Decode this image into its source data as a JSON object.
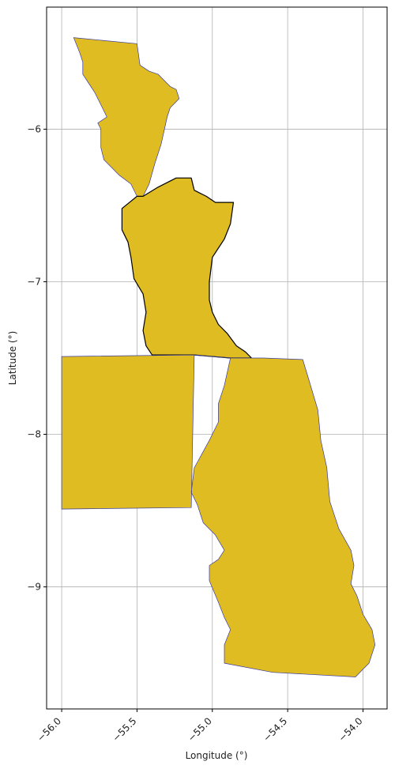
{
  "chart_data": {
    "type": "map",
    "title": "",
    "xlabel": "Longitude (°)",
    "ylabel": "Latitude (°)",
    "xlim": [
      -56.1,
      -53.84
    ],
    "ylim": [
      -9.8,
      -5.2
    ],
    "x_ticks": [
      {
        "value": -56.0,
        "label": "−56.0"
      },
      {
        "value": -55.5,
        "label": "−55.5"
      },
      {
        "value": -55.0,
        "label": "−55.0"
      },
      {
        "value": -54.5,
        "label": "−54.5"
      },
      {
        "value": -54.0,
        "label": "−54.0"
      }
    ],
    "y_ticks": [
      {
        "value": -6,
        "label": "−6"
      },
      {
        "value": -7,
        "label": "−7"
      },
      {
        "value": -8,
        "label": "−8"
      },
      {
        "value": -9,
        "label": "−9"
      }
    ],
    "grid": true,
    "regions": [
      {
        "fill": "#dfbd22",
        "stroke": "#3a3aa0",
        "coords": [
          [
            -55.92,
            -5.4
          ],
          [
            -55.5,
            -5.44
          ],
          [
            -55.48,
            -5.58
          ],
          [
            -55.42,
            -5.62
          ],
          [
            -55.36,
            -5.64
          ],
          [
            -55.32,
            -5.68
          ],
          [
            -55.28,
            -5.72
          ],
          [
            -55.24,
            -5.74
          ],
          [
            -55.22,
            -5.8
          ],
          [
            -55.28,
            -5.86
          ],
          [
            -55.3,
            -5.92
          ],
          [
            -55.34,
            -6.1
          ],
          [
            -55.38,
            -6.22
          ],
          [
            -55.42,
            -6.36
          ],
          [
            -55.46,
            -6.44
          ],
          [
            -55.5,
            -6.44
          ],
          [
            -55.54,
            -6.36
          ],
          [
            -55.62,
            -6.3
          ],
          [
            -55.72,
            -6.2
          ],
          [
            -55.74,
            -6.12
          ],
          [
            -55.74,
            -6.0
          ],
          [
            -55.76,
            -5.96
          ],
          [
            -55.7,
            -5.92
          ],
          [
            -55.74,
            -5.84
          ],
          [
            -55.78,
            -5.76
          ],
          [
            -55.82,
            -5.7
          ],
          [
            -55.86,
            -5.64
          ],
          [
            -55.86,
            -5.56
          ],
          [
            -55.88,
            -5.5
          ]
        ]
      },
      {
        "fill": "#dfbd22",
        "stroke": "#000000",
        "coords": [
          [
            -55.5,
            -6.44
          ],
          [
            -55.46,
            -6.44
          ],
          [
            -55.36,
            -6.38
          ],
          [
            -55.24,
            -6.32
          ],
          [
            -55.14,
            -6.32
          ],
          [
            -55.12,
            -6.4
          ],
          [
            -55.04,
            -6.44
          ],
          [
            -54.98,
            -6.48
          ],
          [
            -54.86,
            -6.48
          ],
          [
            -54.88,
            -6.62
          ],
          [
            -54.92,
            -6.72
          ],
          [
            -54.96,
            -6.78
          ],
          [
            -55.0,
            -6.84
          ],
          [
            -55.02,
            -7.0
          ],
          [
            -55.02,
            -7.12
          ],
          [
            -55.0,
            -7.2
          ],
          [
            -54.96,
            -7.28
          ],
          [
            -54.9,
            -7.34
          ],
          [
            -54.84,
            -7.42
          ],
          [
            -54.78,
            -7.46
          ],
          [
            -54.74,
            -7.5
          ],
          [
            -54.88,
            -7.5
          ],
          [
            -55.12,
            -7.48
          ],
          [
            -55.4,
            -7.48
          ],
          [
            -55.44,
            -7.42
          ],
          [
            -55.46,
            -7.32
          ],
          [
            -55.44,
            -7.2
          ],
          [
            -55.46,
            -7.08
          ],
          [
            -55.52,
            -6.98
          ],
          [
            -55.54,
            -6.84
          ],
          [
            -55.56,
            -6.74
          ],
          [
            -55.6,
            -6.66
          ],
          [
            -55.6,
            -6.52
          ]
        ]
      },
      {
        "fill": "#dfbd22",
        "stroke": "#3a3aa0",
        "coords": [
          [
            -56.0,
            -7.49
          ],
          [
            -55.12,
            -7.48
          ],
          [
            -54.88,
            -7.5
          ],
          [
            -54.66,
            -7.5
          ],
          [
            -54.4,
            -7.51
          ],
          [
            -54.36,
            -7.64
          ],
          [
            -54.3,
            -7.84
          ],
          [
            -54.28,
            -8.04
          ],
          [
            -54.24,
            -8.22
          ],
          [
            -54.22,
            -8.44
          ],
          [
            -54.16,
            -8.62
          ],
          [
            -54.08,
            -8.76
          ],
          [
            -54.06,
            -8.86
          ],
          [
            -54.08,
            -8.98
          ],
          [
            -54.04,
            -9.06
          ],
          [
            -54.0,
            -9.18
          ],
          [
            -53.94,
            -9.28
          ],
          [
            -53.92,
            -9.38
          ],
          [
            -53.94,
            -9.44
          ],
          [
            -53.96,
            -9.5
          ],
          [
            -54.0,
            -9.54
          ],
          [
            -54.05,
            -9.59
          ],
          [
            -54.6,
            -9.56
          ],
          [
            -54.92,
            -9.5
          ],
          [
            -54.92,
            -9.38
          ],
          [
            -54.88,
            -9.28
          ],
          [
            -54.92,
            -9.2
          ],
          [
            -54.96,
            -9.1
          ],
          [
            -55.02,
            -8.96
          ],
          [
            -55.02,
            -8.86
          ],
          [
            -54.96,
            -8.82
          ],
          [
            -54.92,
            -8.76
          ],
          [
            -54.98,
            -8.66
          ],
          [
            -55.06,
            -8.58
          ],
          [
            -55.1,
            -8.46
          ],
          [
            -55.14,
            -8.38
          ],
          [
            -55.12,
            -8.22
          ],
          [
            -55.02,
            -8.04
          ],
          [
            -54.96,
            -7.92
          ],
          [
            -54.96,
            -7.8
          ],
          [
            -54.92,
            -7.68
          ],
          [
            -54.88,
            -7.5
          ],
          [
            -55.12,
            -7.48
          ],
          [
            -55.14,
            -8.48
          ],
          [
            -56.0,
            -8.49
          ]
        ]
      }
    ]
  }
}
